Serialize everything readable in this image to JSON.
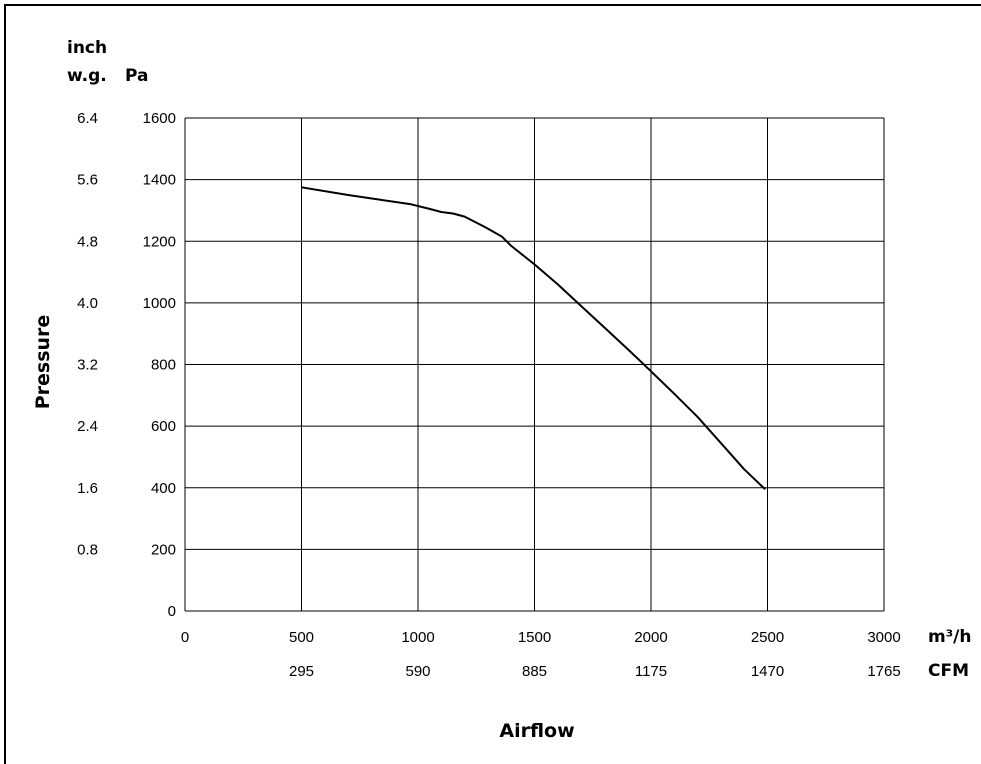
{
  "chart_data": {
    "type": "line",
    "xlabel": "Airflow",
    "ylabel": "Pressure",
    "x_unit_primary": "m³/h",
    "x_unit_secondary": "CFM",
    "y_unit_primary": "Pa",
    "y_unit_secondary_line1": "inch",
    "y_unit_secondary_line2": "w.g.",
    "xlim": [
      0,
      3000
    ],
    "ylim": [
      0,
      1600
    ],
    "grid": true,
    "x_ticks": [
      "0",
      "500",
      "1000",
      "1500",
      "2000",
      "2500",
      "3000"
    ],
    "x_ticks_secondary": [
      "",
      "295",
      "590",
      "885",
      "1175",
      "1470",
      "1765"
    ],
    "y_ticks": [
      "0",
      "200",
      "400",
      "600",
      "800",
      "1000",
      "1200",
      "1400",
      "1600"
    ],
    "y_ticks_secondary": [
      "",
      "0.8",
      "1.6",
      "2.4",
      "3.2",
      "4.0",
      "4.8",
      "5.6",
      "6.4"
    ],
    "series": [
      {
        "color": "#000000",
        "points": [
          [
            500,
            1375
          ],
          [
            700,
            1350
          ],
          [
            970,
            1320
          ],
          [
            1050,
            1305
          ],
          [
            1100,
            1295
          ],
          [
            1150,
            1290
          ],
          [
            1200,
            1280
          ],
          [
            1290,
            1245
          ],
          [
            1360,
            1215
          ],
          [
            1400,
            1185
          ],
          [
            1500,
            1125
          ],
          [
            1600,
            1060
          ],
          [
            1700,
            990
          ],
          [
            1800,
            920
          ],
          [
            1900,
            850
          ],
          [
            2000,
            778
          ],
          [
            2100,
            705
          ],
          [
            2200,
            630
          ],
          [
            2300,
            545
          ],
          [
            2400,
            460
          ],
          [
            2490,
            395
          ]
        ]
      }
    ]
  }
}
